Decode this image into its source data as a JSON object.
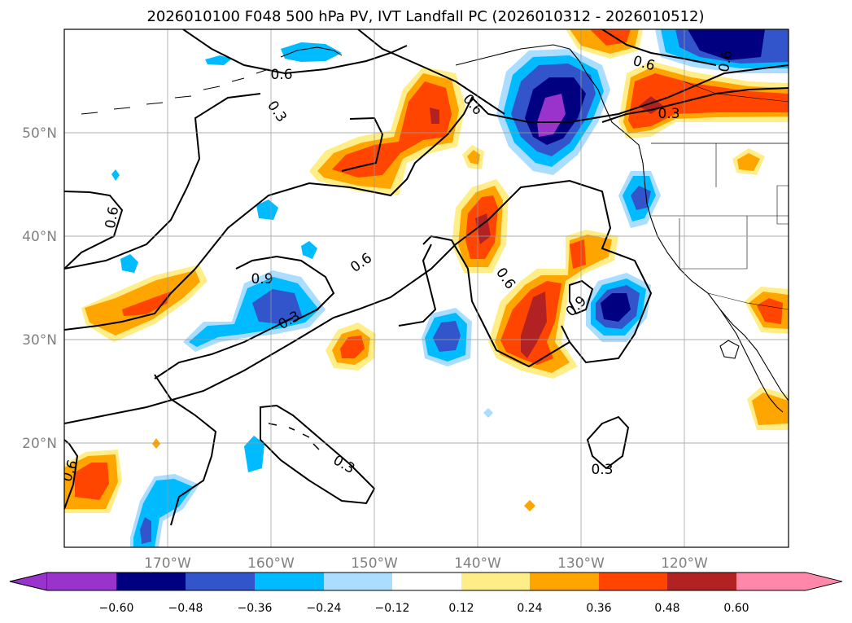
{
  "title": "2026010100 F048 500 hPa PV, IVT Landfall PC (2026010312 - 2026010512)",
  "lon_labels": [
    "170°W",
    "160°W",
    "150°W",
    "140°W",
    "130°W",
    "120°W"
  ],
  "lat_labels": [
    "50°N",
    "40°N",
    "30°N",
    "20°N"
  ],
  "colorbar": {
    "colors": [
      "#9933cc",
      "#000080",
      "#3355cc",
      "#00bbff",
      "#aaddff",
      "#ffffff",
      "#ffee88",
      "#ffa500",
      "#ff4500",
      "#b22222",
      "#ff88aa"
    ],
    "ticks": [
      "−0.60",
      "−0.48",
      "−0.36",
      "−0.24",
      "−0.12",
      "0.12",
      "0.24",
      "0.36",
      "0.48",
      "0.60"
    ]
  },
  "contour_labels": [
    "0.6",
    "0.3",
    "0.6",
    "0.6",
    "0.6",
    "0.3",
    "0.6",
    "0.6",
    "0.9",
    "0.6",
    "0.3",
    "0.6",
    "0.9",
    "0.3",
    "0.3",
    "0.6"
  ]
}
